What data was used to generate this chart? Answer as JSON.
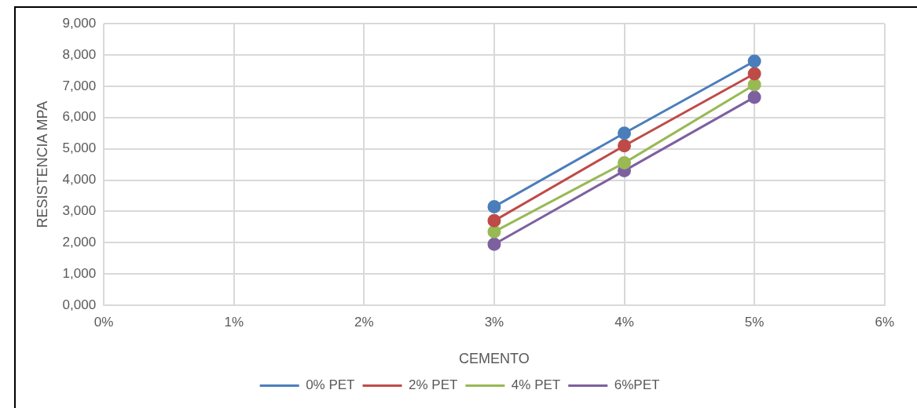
{
  "chart_data": {
    "type": "line",
    "xlabel": "CEMENTO",
    "ylabel": "RESISTENCIA MPA",
    "xlim": [
      0,
      6
    ],
    "xticks": [
      {
        "value": 0,
        "label": "0%"
      },
      {
        "value": 1,
        "label": "1%"
      },
      {
        "value": 2,
        "label": "2%"
      },
      {
        "value": 3,
        "label": "3%"
      },
      {
        "value": 4,
        "label": "4%"
      },
      {
        "value": 5,
        "label": "5%"
      },
      {
        "value": 6,
        "label": "6%"
      }
    ],
    "ylim": [
      0,
      9000
    ],
    "yticks": [
      {
        "value": 0,
        "label": "0,000"
      },
      {
        "value": 1000,
        "label": "1,000"
      },
      {
        "value": 2000,
        "label": "2,000"
      },
      {
        "value": 3000,
        "label": "3,000"
      },
      {
        "value": 4000,
        "label": "4,000"
      },
      {
        "value": 5000,
        "label": "5,000"
      },
      {
        "value": 6000,
        "label": "6,000"
      },
      {
        "value": 7000,
        "label": "7,000"
      },
      {
        "value": 8000,
        "label": "8,000"
      },
      {
        "value": 9000,
        "label": "9,000"
      }
    ],
    "x": [
      3,
      4,
      5
    ],
    "series": [
      {
        "name": "0% PET",
        "color": "#4a7ebb",
        "values": [
          3150,
          5500,
          7800
        ]
      },
      {
        "name": "2% PET",
        "color": "#be4b48",
        "values": [
          2700,
          5100,
          7400
        ]
      },
      {
        "name": "4% PET",
        "color": "#98b954",
        "values": [
          2350,
          4550,
          7050
        ]
      },
      {
        "name": "6%PET",
        "color": "#7d60a0",
        "values": [
          1950,
          4300,
          6650
        ]
      }
    ],
    "grid": true,
    "legend": "bottom",
    "marker": "circle",
    "line_style": "solid"
  }
}
